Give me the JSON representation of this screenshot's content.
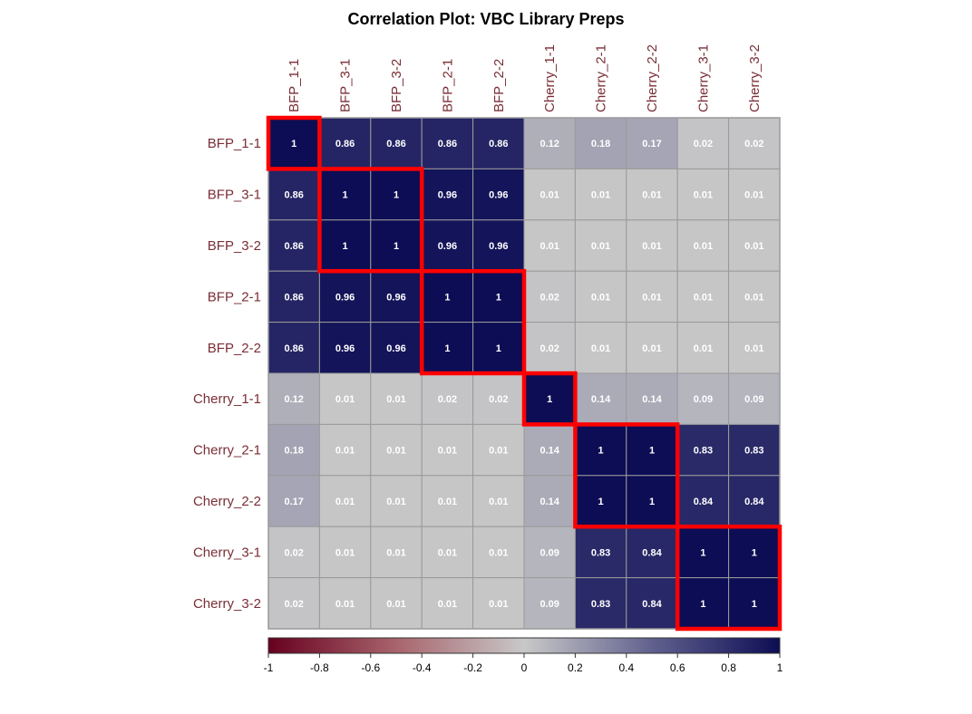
{
  "chart_data": {
    "type": "heatmap",
    "title": "Correlation Plot: VBC Library Preps",
    "row_labels": [
      "BFP_1-1",
      "BFP_3-1",
      "BFP_3-2",
      "BFP_2-1",
      "BFP_2-2",
      "Cherry_1-1",
      "Cherry_2-1",
      "Cherry_2-2",
      "Cherry_3-1",
      "Cherry_3-2"
    ],
    "col_labels": [
      "BFP_1-1",
      "BFP_3-1",
      "BFP_3-2",
      "BFP_2-1",
      "BFP_2-2",
      "Cherry_1-1",
      "Cherry_2-1",
      "Cherry_2-2",
      "Cherry_3-1",
      "Cherry_3-2"
    ],
    "values": [
      [
        1,
        0.86,
        0.86,
        0.86,
        0.86,
        0.12,
        0.18,
        0.17,
        0.02,
        0.02
      ],
      [
        0.86,
        1,
        1,
        0.96,
        0.96,
        0.01,
        0.01,
        0.01,
        0.01,
        0.01
      ],
      [
        0.86,
        1,
        1,
        0.96,
        0.96,
        0.01,
        0.01,
        0.01,
        0.01,
        0.01
      ],
      [
        0.86,
        0.96,
        0.96,
        1,
        1,
        0.02,
        0.01,
        0.01,
        0.01,
        0.01
      ],
      [
        0.86,
        0.96,
        0.96,
        1,
        1,
        0.02,
        0.01,
        0.01,
        0.01,
        0.01
      ],
      [
        0.12,
        0.01,
        0.01,
        0.02,
        0.02,
        1,
        0.14,
        0.14,
        0.09,
        0.09
      ],
      [
        0.18,
        0.01,
        0.01,
        0.01,
        0.01,
        0.14,
        1,
        1,
        0.83,
        0.83
      ],
      [
        0.17,
        0.01,
        0.01,
        0.01,
        0.01,
        0.14,
        1,
        1,
        0.84,
        0.84
      ],
      [
        0.02,
        0.01,
        0.01,
        0.01,
        0.01,
        0.09,
        0.83,
        0.84,
        1,
        1
      ],
      [
        0.02,
        0.01,
        0.01,
        0.01,
        0.01,
        0.09,
        0.83,
        0.84,
        1,
        1
      ]
    ],
    "cluster_boxes": [
      {
        "start": 0,
        "end": 0
      },
      {
        "start": 1,
        "end": 2
      },
      {
        "start": 3,
        "end": 4
      },
      {
        "start": 5,
        "end": 5
      },
      {
        "start": 6,
        "end": 7
      },
      {
        "start": 8,
        "end": 9
      }
    ],
    "color_scale": {
      "range": [
        -1,
        1
      ],
      "stops": [
        {
          "value": -1,
          "color": "#67001f"
        },
        {
          "value": -0.5,
          "color": "#a8646c"
        },
        {
          "value": 0,
          "color": "#c8c8c8"
        },
        {
          "value": 0.5,
          "color": "#61618f"
        },
        {
          "value": 1,
          "color": "#0d0d55"
        }
      ],
      "ticks": [
        "-1",
        "-0.8",
        "-0.6",
        "-0.4",
        "-0.2",
        "0",
        "0.2",
        "0.4",
        "0.6",
        "0.8",
        "1"
      ]
    },
    "label_color": "#7a2e36",
    "box_color": "#ff0000",
    "grid_color": "#9a9a9a",
    "legend_placement": "bottom"
  }
}
